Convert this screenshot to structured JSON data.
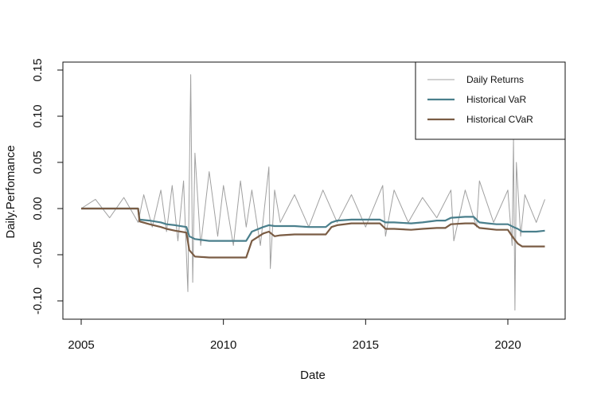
{
  "chart_data": {
    "type": "line",
    "title": "",
    "xlabel": "Date",
    "ylabel": "Daily.Perfomance",
    "xlim": [
      2005.0,
      2021.35
    ],
    "ylim": [
      -0.1,
      0.15
    ],
    "xticks": [
      2005,
      2010,
      2015,
      2020
    ],
    "xtick_labels": [
      "2005",
      "2010",
      "2015",
      "2020"
    ],
    "yticks": [
      -0.1,
      -0.05,
      0.0,
      0.05,
      0.1,
      0.15
    ],
    "ytick_labels": [
      "-0.10",
      "-0.05",
      "0.00",
      "0.05",
      "0.10",
      "0.15"
    ],
    "legend_position": "top-right",
    "grid": false,
    "series": [
      {
        "name": "Daily Returns",
        "color": "#a0a0a0",
        "x": [
          2005.0,
          2005.5,
          2006.0,
          2006.5,
          2007.0,
          2007.2,
          2007.5,
          2007.8,
          2008.0,
          2008.2,
          2008.4,
          2008.6,
          2008.75,
          2008.85,
          2008.92,
          2009.0,
          2009.2,
          2009.5,
          2009.8,
          2010.0,
          2010.35,
          2010.6,
          2010.8,
          2011.0,
          2011.3,
          2011.6,
          2011.65,
          2011.8,
          2012.0,
          2012.5,
          2013.0,
          2013.5,
          2014.0,
          2014.5,
          2015.0,
          2015.6,
          2015.7,
          2016.0,
          2016.5,
          2017.0,
          2017.5,
          2018.0,
          2018.1,
          2018.5,
          2018.9,
          2019.0,
          2019.5,
          2020.0,
          2020.15,
          2020.2,
          2020.25,
          2020.3,
          2020.45,
          2020.6,
          2021.0,
          2021.3
        ],
        "y": [
          0.0,
          0.01,
          -0.01,
          0.012,
          -0.015,
          0.015,
          -0.02,
          0.02,
          -0.025,
          0.025,
          -0.035,
          0.03,
          -0.09,
          0.145,
          -0.08,
          0.06,
          -0.04,
          0.04,
          -0.03,
          0.025,
          -0.04,
          0.03,
          -0.02,
          0.02,
          -0.04,
          0.045,
          -0.065,
          0.02,
          -0.015,
          0.015,
          -0.02,
          0.02,
          -0.015,
          0.015,
          -0.02,
          0.025,
          -0.03,
          0.02,
          -0.015,
          0.012,
          -0.01,
          0.02,
          -0.035,
          0.02,
          -0.02,
          0.03,
          -0.015,
          0.02,
          -0.04,
          0.075,
          -0.11,
          0.05,
          -0.03,
          0.015,
          -0.015,
          0.01
        ]
      },
      {
        "name": "Historical VaR",
        "color": "#4a7f8c",
        "x": [
          2005.0,
          2007.0,
          2007.05,
          2007.4,
          2007.8,
          2008.0,
          2008.3,
          2008.7,
          2008.8,
          2009.0,
          2009.5,
          2010.0,
          2010.5,
          2010.8,
          2011.0,
          2011.4,
          2011.6,
          2011.8,
          2012.0,
          2012.5,
          2013.0,
          2013.6,
          2013.8,
          2014.0,
          2014.5,
          2015.0,
          2015.5,
          2015.7,
          2016.0,
          2016.6,
          2017.0,
          2017.5,
          2017.8,
          2018.0,
          2018.5,
          2018.8,
          2019.0,
          2019.3,
          2019.6,
          2020.0,
          2020.2,
          2020.35,
          2020.5,
          2021.0,
          2021.3
        ],
        "y": [
          0.0,
          0.0,
          -0.012,
          -0.013,
          -0.015,
          -0.017,
          -0.018,
          -0.02,
          -0.03,
          -0.033,
          -0.035,
          -0.035,
          -0.035,
          -0.035,
          -0.025,
          -0.02,
          -0.018,
          -0.019,
          -0.019,
          -0.019,
          -0.02,
          -0.02,
          -0.015,
          -0.013,
          -0.012,
          -0.012,
          -0.012,
          -0.015,
          -0.015,
          -0.016,
          -0.015,
          -0.013,
          -0.013,
          -0.01,
          -0.009,
          -0.009,
          -0.015,
          -0.016,
          -0.017,
          -0.017,
          -0.02,
          -0.022,
          -0.025,
          -0.025,
          -0.024
        ]
      },
      {
        "name": "Historical CVaR",
        "color": "#7a5c44",
        "x": [
          2005.0,
          2007.0,
          2007.05,
          2007.4,
          2007.8,
          2008.0,
          2008.3,
          2008.7,
          2008.8,
          2009.0,
          2009.5,
          2010.0,
          2010.5,
          2010.8,
          2011.0,
          2011.4,
          2011.6,
          2011.8,
          2012.0,
          2012.5,
          2013.0,
          2013.6,
          2013.8,
          2014.0,
          2014.5,
          2015.0,
          2015.5,
          2015.7,
          2016.0,
          2016.6,
          2017.0,
          2017.5,
          2017.8,
          2018.0,
          2018.5,
          2018.8,
          2019.0,
          2019.3,
          2019.6,
          2020.0,
          2020.2,
          2020.35,
          2020.5,
          2021.0,
          2021.3
        ],
        "y": [
          0.0,
          0.0,
          -0.014,
          -0.017,
          -0.02,
          -0.022,
          -0.024,
          -0.026,
          -0.045,
          -0.052,
          -0.053,
          -0.053,
          -0.053,
          -0.053,
          -0.035,
          -0.027,
          -0.025,
          -0.03,
          -0.029,
          -0.028,
          -0.028,
          -0.028,
          -0.02,
          -0.018,
          -0.016,
          -0.016,
          -0.016,
          -0.022,
          -0.022,
          -0.023,
          -0.022,
          -0.021,
          -0.021,
          -0.017,
          -0.016,
          -0.016,
          -0.021,
          -0.022,
          -0.023,
          -0.023,
          -0.032,
          -0.038,
          -0.041,
          -0.041,
          -0.041
        ]
      }
    ]
  }
}
